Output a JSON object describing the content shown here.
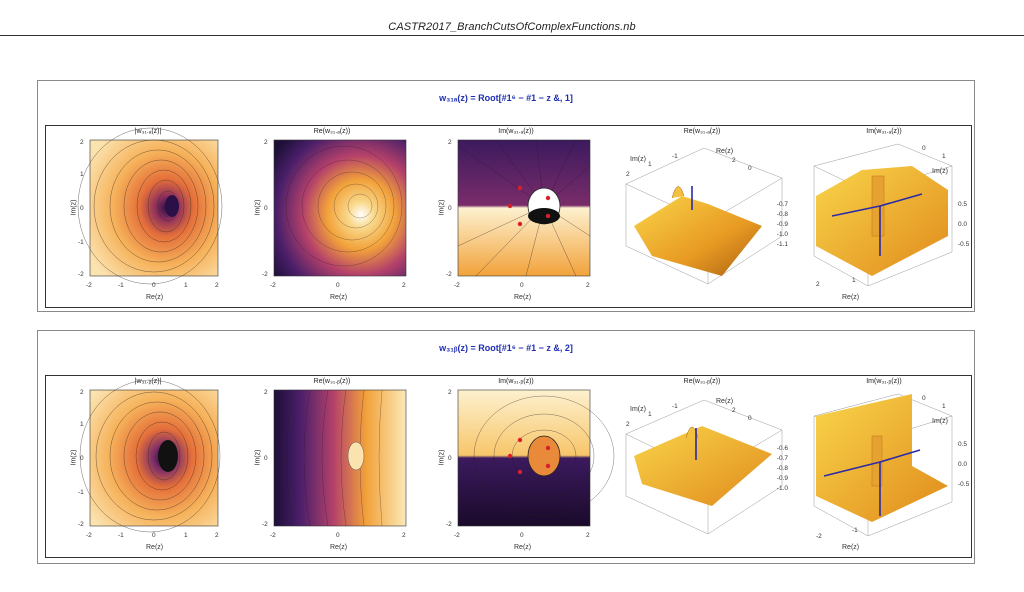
{
  "document": {
    "title": "CASTR2017_BranchCutsOfComplexFunctions.nb"
  },
  "cells": [
    {
      "title": "w₃₁ₐ(z) = Root[#1⁶ − #1 − z &, 1]",
      "plots": [
        {
          "label": "|w₃₁.ₐ(z)|",
          "ylabel": "Im(z)",
          "xlabel": "Re(z)"
        },
        {
          "label": "Re(w₃₁.ₐ(z))",
          "ylabel": "Im(z)",
          "xlabel": "Re(z)"
        },
        {
          "label": "Im(w₃₁.ₐ(z))",
          "ylabel": "Im(z)",
          "xlabel": "Re(z)"
        },
        {
          "label": "Re(w₃₁.ₐ(z))",
          "ylabel": "Im(z)",
          "xlabel": "Re(z)",
          "zticks": [
            "-0.7",
            "-0.8",
            "-0.9",
            "-1.0",
            "-1.1"
          ]
        },
        {
          "label": "Im(w₃₁.ₐ(z))",
          "ylabel": "Im(z)",
          "xlabel": "Re(z)",
          "zticks": [
            "0.5",
            "0.0",
            "-0.5"
          ]
        }
      ]
    },
    {
      "title": "w₃₁ᵦ(z) = Root[#1⁶ − #1 − z &, 2]",
      "plots": [
        {
          "label": "|w₃₁.ᵦ(z)|",
          "ylabel": "Im(z)",
          "xlabel": "Re(z)"
        },
        {
          "label": "Re(w₃₁.ᵦ(z))",
          "ylabel": "Im(z)",
          "xlabel": "Re(z)"
        },
        {
          "label": "Im(w₃₁.ᵦ(z))",
          "ylabel": "Im(z)",
          "xlabel": "Re(z)"
        },
        {
          "label": "Re(w₃₁.ᵦ(z))",
          "ylabel": "Im(z)",
          "xlabel": "Re(z)",
          "zticks": [
            "-0.6",
            "-0.7",
            "-0.8",
            "-0.9",
            "-1.0"
          ]
        },
        {
          "label": "Im(w₃₁.ᵦ(z))",
          "ylabel": "Im(z)",
          "xlabel": "Re(z)",
          "zticks": [
            "0.5",
            "0.0",
            "-0.5"
          ]
        }
      ]
    }
  ],
  "axis_ticks": [
    "-2",
    "-1",
    "0",
    "1",
    "2"
  ],
  "colors": {
    "title_blue": "#1f2fb0",
    "orange": "#f2a23a",
    "dark": "#2a1046",
    "branch_line": "#2a2aa8",
    "point": "#d8202a"
  }
}
